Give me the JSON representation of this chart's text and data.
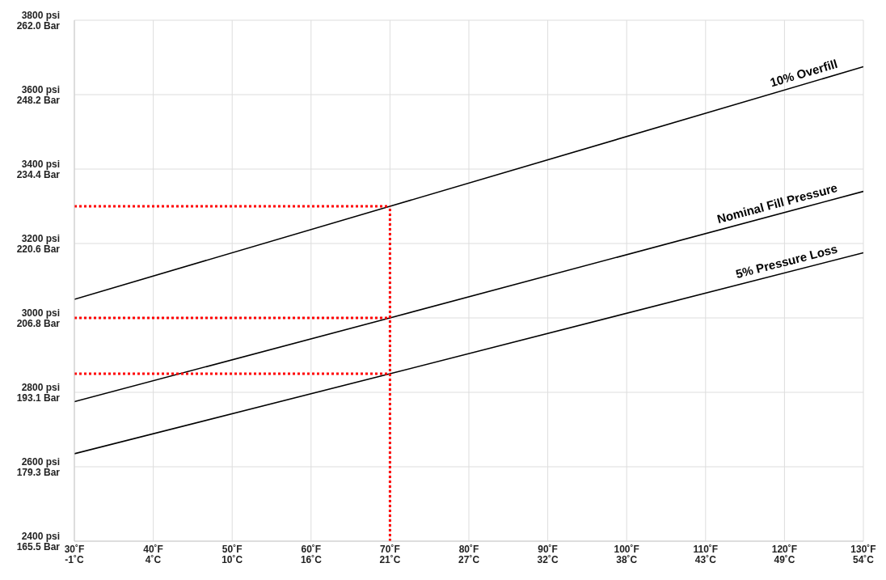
{
  "chart_data": {
    "type": "line",
    "xlim": [
      30,
      130
    ],
    "xticks": [
      {
        "value": 30,
        "label": "30˚F"
      },
      {
        "value": 40,
        "label": "40˚F"
      },
      {
        "value": 50,
        "label": "50˚F"
      },
      {
        "value": 60,
        "label": "60˚F"
      },
      {
        "value": 70,
        "label": "70˚F"
      },
      {
        "value": 80,
        "label": "80˚F"
      },
      {
        "value": 90,
        "label": "90˚F"
      },
      {
        "value": 100,
        "label": "100˚F"
      },
      {
        "value": 110,
        "label": "110˚F"
      },
      {
        "value": 120,
        "label": "120˚F"
      },
      {
        "value": 130,
        "label": "130˚F"
      }
    ],
    "x2lim": [
      -1.11,
      54.44
    ],
    "x2ticks": [
      {
        "value": -1.11,
        "label": "-1˚C"
      },
      {
        "value": 4.44,
        "label": "4˚C"
      },
      {
        "value": 10,
        "label": "10˚C"
      },
      {
        "value": 15.56,
        "label": "16˚C"
      },
      {
        "value": 21.11,
        "label": "21˚C"
      },
      {
        "value": 26.67,
        "label": "27˚C"
      },
      {
        "value": 32.22,
        "label": "32˚C"
      },
      {
        "value": 37.78,
        "label": "38˚C"
      },
      {
        "value": 43.33,
        "label": "43˚C"
      },
      {
        "value": 48.89,
        "label": "49˚C"
      },
      {
        "value": 54.44,
        "label": "54˚C"
      }
    ],
    "ylim": [
      2400,
      3800
    ],
    "yticks": [
      {
        "value": 2400,
        "label": "2400 psi"
      },
      {
        "value": 2600,
        "label": "2600 psi"
      },
      {
        "value": 2800,
        "label": "2800 psi"
      },
      {
        "value": 3000,
        "label": "3000 psi"
      },
      {
        "value": 3200,
        "label": "3200 psi"
      },
      {
        "value": 3400,
        "label": "3400 psi"
      },
      {
        "value": 3600,
        "label": "3600 psi"
      },
      {
        "value": 3800,
        "label": "3800 psi"
      }
    ],
    "y2lim": [
      165.5,
      262.0
    ],
    "y2ticks": [
      {
        "value": 165.5,
        "label": "165.5 Bar"
      },
      {
        "value": 179.3,
        "label": "179.3 Bar"
      },
      {
        "value": 193.1,
        "label": "193.1 Bar"
      },
      {
        "value": 206.8,
        "label": "206.8 Bar"
      },
      {
        "value": 220.6,
        "label": "220.6 Bar"
      },
      {
        "value": 234.4,
        "label": "234.4 Bar"
      },
      {
        "value": 248.2,
        "label": "248.2 Bar"
      },
      {
        "value": 262.0,
        "label": "262.0 Bar"
      }
    ],
    "grid": true,
    "legend": false,
    "marker": "none",
    "series": [
      {
        "name": "10% Overfill",
        "color": "#000000",
        "x": [
          30,
          70,
          130
        ],
        "values": [
          3050,
          3300,
          3675
        ]
      },
      {
        "name": "Nominal Fill Pressure",
        "color": "#000000",
        "x": [
          30,
          70,
          130
        ],
        "values": [
          2775,
          3000,
          3340
        ]
      },
      {
        "name": "5% Pressure Loss",
        "color": "#000000",
        "x": [
          30,
          70,
          130
        ],
        "values": [
          2635,
          2850,
          3175
        ]
      },
      {
        "color": "#ff0000",
        "line_style": "dotted",
        "x": [
          30,
          70
        ],
        "values": [
          3300,
          3300
        ]
      },
      {
        "color": "#ff0000",
        "line_style": "dotted",
        "x": [
          30,
          70
        ],
        "values": [
          3000,
          3000
        ]
      },
      {
        "color": "#ff0000",
        "line_style": "dotted",
        "x": [
          30,
          70
        ],
        "values": [
          2850,
          2850
        ]
      },
      {
        "color": "#ff0000",
        "line_style": "dotted",
        "x": [
          70,
          70
        ],
        "values": [
          2400,
          3300
        ]
      }
    ]
  }
}
